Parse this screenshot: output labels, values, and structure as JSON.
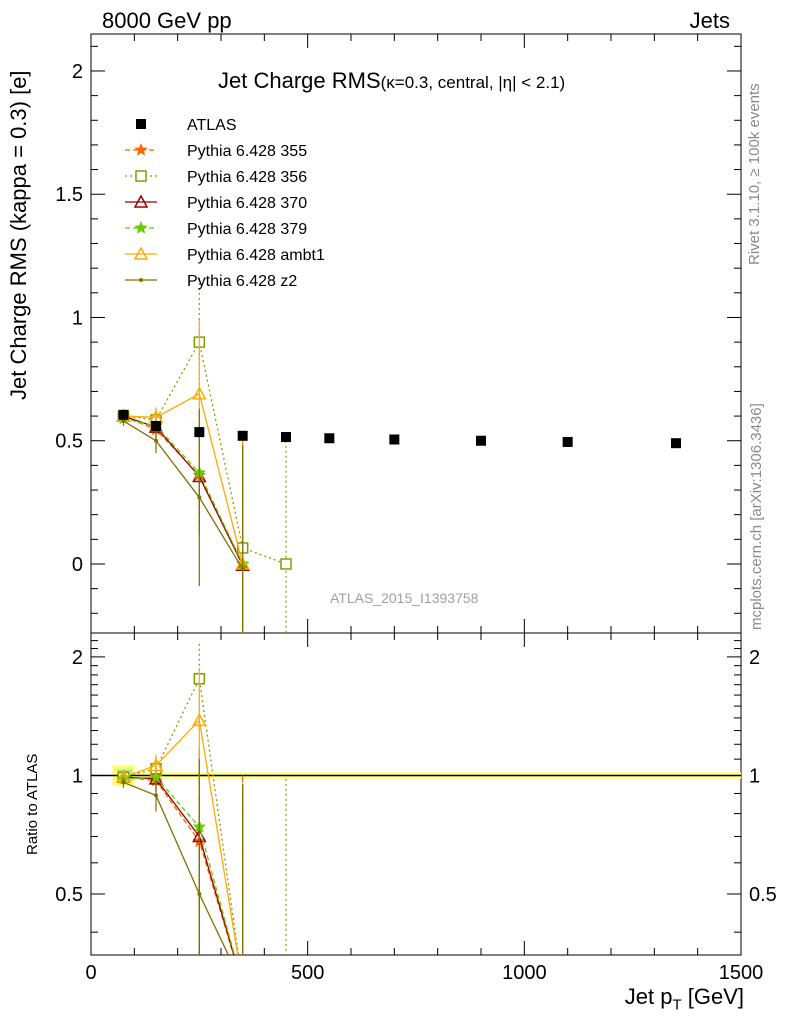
{
  "header": {
    "energy": "8000 GeV pp",
    "process": "Jets"
  },
  "side": {
    "rivet": "Rivet 3.1.10, ≥ 100k events",
    "mcplots": "mcplots.cern.ch [arXiv:1306.3436]"
  },
  "chart_data": {
    "type": "scatter",
    "title": "Jet Charge RMS",
    "title_detail": "(κ=0.3, central, |η| < 2.1)",
    "analysis_label": "ATLAS_2015_I1393758",
    "xlabel": "Jet p_T [GeV]",
    "xlabel_main": "Jet p",
    "xlabel_sub": "T",
    "xlabel_unit": "[GeV]",
    "ylabel": "Jet Charge RMS (kappa = 0.3) [e]",
    "ratio_ylabel": "Ratio to ATLAS",
    "xlim": [
      0,
      1500
    ],
    "ylim": [
      -0.28,
      2.15
    ],
    "ratio_ylim": [
      0.35,
      2.3
    ],
    "x_ticks": [
      "0",
      "500",
      "1000",
      "1500"
    ],
    "x_tick_values": [
      0,
      500,
      1000,
      1500
    ],
    "y_ticks": [
      "0",
      "0.5",
      "1",
      "1.5",
      "2"
    ],
    "y_tick_values": [
      0,
      0.5,
      1,
      1.5,
      2
    ],
    "ratio_ticks": [
      "0.5",
      "1",
      "2"
    ],
    "ratio_tick_values": [
      0.5,
      1,
      2
    ],
    "data": {
      "name": "ATLAS",
      "color": "#000000",
      "x": [
        75,
        150,
        250,
        350,
        450,
        550,
        700,
        900,
        1100,
        1350
      ],
      "y": [
        0.605,
        0.56,
        0.535,
        0.52,
        0.515,
        0.51,
        0.505,
        0.5,
        0.495,
        0.49
      ]
    },
    "series": [
      {
        "name": "Pythia 6.428 355",
        "color": "#ff6600",
        "dash": "5,3",
        "marker": "star",
        "x": [
          75,
          150,
          250,
          350
        ],
        "y": [
          0.6,
          0.545,
          0.36,
          0.0
        ],
        "err": [
          0.02,
          0.04,
          0.25,
          0.52
        ],
        "ratio": [
          0.99,
          0.97,
          0.68,
          0.0
        ],
        "ratio_err": [
          0.03,
          0.07,
          0.5,
          1.0
        ]
      },
      {
        "name": "Pythia 6.428 356",
        "color": "#8a9a00",
        "dash": "2,3",
        "marker": "opensquare",
        "x": [
          75,
          150,
          250,
          350,
          450
        ],
        "y": [
          0.6,
          0.585,
          0.9,
          0.065,
          0.0
        ],
        "err": [
          0.02,
          0.05,
          0.26,
          0.45,
          0.5
        ],
        "ratio": [
          0.99,
          1.04,
          1.76,
          0.12,
          0.0
        ],
        "ratio_err": [
          0.03,
          0.08,
          0.4,
          0.85,
          0.98
        ]
      },
      {
        "name": "Pythia 6.428 370",
        "color": "#990000",
        "dash": "",
        "marker": "opentriangle",
        "x": [
          75,
          150,
          250,
          350
        ],
        "y": [
          0.6,
          0.555,
          0.355,
          -0.005
        ],
        "err": [
          0.02,
          0.04,
          0.22,
          0.5
        ],
        "ratio": [
          0.99,
          0.98,
          0.7,
          0.0
        ],
        "ratio_err": [
          0.03,
          0.07,
          0.45,
          0.95
        ]
      },
      {
        "name": "Pythia 6.428 379",
        "color": "#66cc00",
        "dash": "5,3",
        "marker": "star",
        "x": [
          75,
          150,
          250,
          350
        ],
        "y": [
          0.59,
          0.56,
          0.37,
          0.0
        ],
        "err": [
          0.02,
          0.04,
          0.25,
          0.5
        ],
        "ratio": [
          0.98,
          0.99,
          0.74,
          0.0
        ],
        "ratio_err": [
          0.03,
          0.07,
          0.45,
          0.95
        ]
      },
      {
        "name": "Pythia 6.428 ambt1",
        "color": "#ffaa00",
        "dash": "",
        "marker": "opentriangle",
        "x": [
          75,
          150,
          250,
          350
        ],
        "y": [
          0.6,
          0.595,
          0.69,
          0.0
        ],
        "err": [
          0.02,
          0.04,
          0.3,
          0.5
        ],
        "ratio": [
          0.99,
          1.06,
          1.38,
          0.0
        ],
        "ratio_err": [
          0.03,
          0.07,
          0.5,
          0.95
        ]
      },
      {
        "name": "Pythia 6.428 z2",
        "color": "#807000",
        "dash": "",
        "marker": "dot",
        "x": [
          75,
          150,
          250,
          350
        ],
        "y": [
          0.58,
          0.5,
          0.27,
          -0.02
        ],
        "err": [
          0.02,
          0.05,
          0.36,
          0.5
        ],
        "ratio": [
          0.96,
          0.89,
          0.5,
          0.0
        ],
        "ratio_err": [
          0.03,
          0.08,
          0.6,
          0.95
        ]
      }
    ]
  }
}
